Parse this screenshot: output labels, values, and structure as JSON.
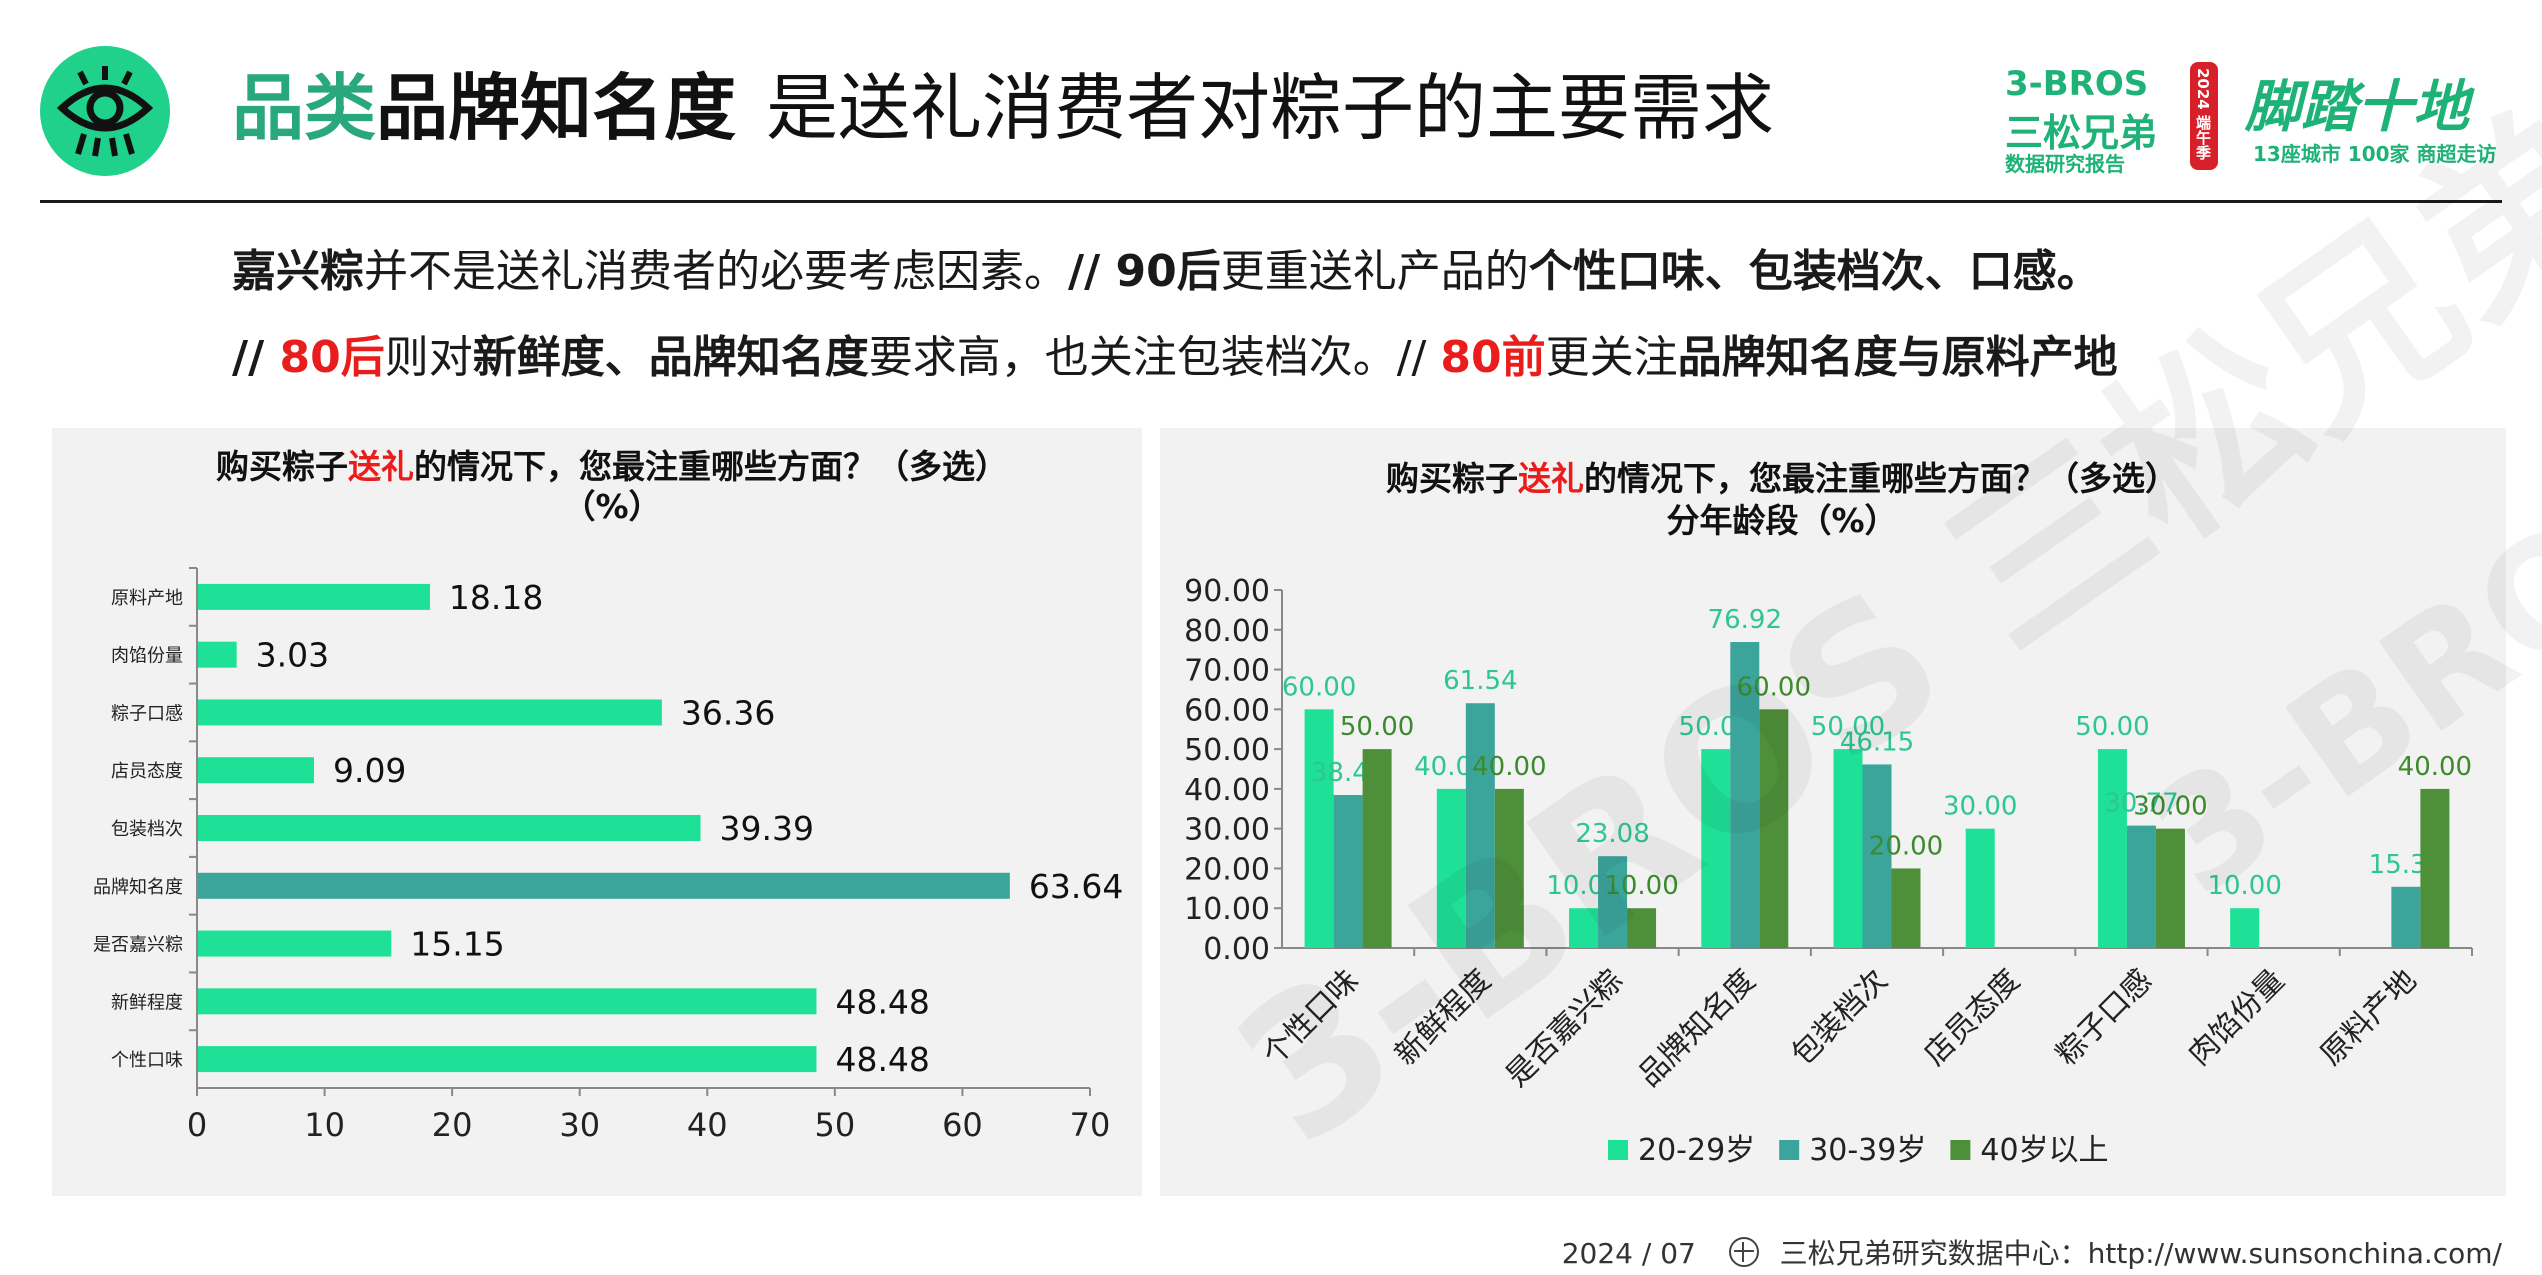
{
  "header": {
    "title_part1": "品类",
    "title_part2": "品牌知名度",
    "title_part3": "是送礼消费者对粽子的主要需求"
  },
  "brand": {
    "name_en": "3-BROS",
    "name_cn": "三松兄弟",
    "tagline": "数据研究报告",
    "seal_text": "2024 端午季",
    "campaign": "脚踏十地",
    "campaign_sub": "13座城市 100家 商超走访"
  },
  "subtitle": {
    "line1": [
      {
        "text": "嘉兴粽",
        "style": "bold"
      },
      {
        "text": "并不是送礼消费者的必要考虑因素。",
        "style": "normal"
      },
      {
        "text": "// 90后",
        "style": "bold"
      },
      {
        "text": "更重送礼产品的",
        "style": "normal"
      },
      {
        "text": "个性口味、包装档次、口感。",
        "style": "bold"
      }
    ],
    "line2": [
      {
        "text": "// ",
        "style": "bold"
      },
      {
        "text": "80后",
        "style": "red"
      },
      {
        "text": "则对",
        "style": "normal"
      },
      {
        "text": "新鲜度、品牌知名度",
        "style": "bold"
      },
      {
        "text": "要求高，也关注包装档次。// ",
        "style": "normal"
      },
      {
        "text": "80前",
        "style": "red"
      },
      {
        "text": "更关注",
        "style": "normal"
      },
      {
        "text": "品牌知名度与原料产地",
        "style": "bold"
      }
    ]
  },
  "chart_data": [
    {
      "type": "bar",
      "orientation": "horizontal",
      "title": "购买粽子送礼的情况下，您最注重哪些方面？（多选）",
      "title_parts": [
        "购买粽子",
        "送礼",
        "的情况下，您最注重哪些方面？（多选）"
      ],
      "title_line2": "（%）",
      "categories": [
        "原料产地",
        "肉馅份量",
        "粽子口感",
        "店员态度",
        "包装档次",
        "品牌知名度",
        "是否嘉兴粽",
        "新鲜程度",
        "个性口味"
      ],
      "values": [
        18.18,
        3.03,
        36.36,
        9.09,
        39.39,
        63.64,
        15.15,
        48.48,
        48.48
      ],
      "value_labels": [
        "18.18",
        "3.03",
        "36.36",
        "9.09",
        "39.39",
        "63.64",
        "15.15",
        "48.48",
        "48.48"
      ],
      "highlight_index": 5,
      "xlim": [
        0,
        70
      ],
      "xticks": [
        "0",
        "10",
        "20",
        "30",
        "40",
        "50",
        "60",
        "70"
      ],
      "colors": {
        "bar": "#1ee096",
        "highlight": "#3ba59c"
      }
    },
    {
      "type": "bar",
      "orientation": "vertical",
      "title": "购买粽子送礼的情况下，您最注重哪些方面？（多选）",
      "title_parts": [
        "购买粽子",
        "送礼",
        "的情况下，您最注重哪些方面？（多选）"
      ],
      "title_line2": "分年龄段（%）",
      "categories": [
        "个性口味",
        "新鲜程度",
        "是否嘉兴粽",
        "品牌知名度",
        "包装档次",
        "店员态度",
        "粽子口感",
        "肉馅份量",
        "原料产地"
      ],
      "series": [
        {
          "name": "20-29岁",
          "color": "#1ee096",
          "values": [
            60.0,
            40.0,
            10.0,
            50.0,
            50.0,
            30.0,
            50.0,
            10.0,
            0
          ],
          "labels": [
            "60.00",
            "40.00",
            "10.00",
            "50.00",
            "50.00",
            "30.00",
            "50.00",
            "10.00",
            ""
          ]
        },
        {
          "name": "30-39岁",
          "color": "#3ba59c",
          "values": [
            38.46,
            61.54,
            23.08,
            76.92,
            46.15,
            0,
            30.77,
            0,
            15.38
          ],
          "labels": [
            "38.46",
            "61.54",
            "23.08",
            "76.92",
            "46.15",
            "",
            "30.77",
            "",
            "15.38"
          ]
        },
        {
          "name": "40岁以上",
          "color": "#4e8f3a",
          "values": [
            50.0,
            40.0,
            10.0,
            60.0,
            20.0,
            0,
            30.0,
            0,
            40.0
          ],
          "labels": [
            "50.00",
            "40.00",
            "10.00",
            "60.00",
            "20.00",
            "",
            "30.00",
            "",
            "40.00"
          ]
        }
      ],
      "ylim": [
        0,
        90
      ],
      "yticks": [
        "0.00",
        "10.00",
        "20.00",
        "30.00",
        "40.00",
        "50.00",
        "60.00",
        "70.00",
        "80.00",
        "90.00"
      ],
      "legend": "bottom"
    }
  ],
  "footer": {
    "date": "2024 / 07",
    "source": "三松兄弟研究数据中心：http://www.sunsonchina.com/"
  },
  "watermark": "3-BROS 三松兄弟"
}
